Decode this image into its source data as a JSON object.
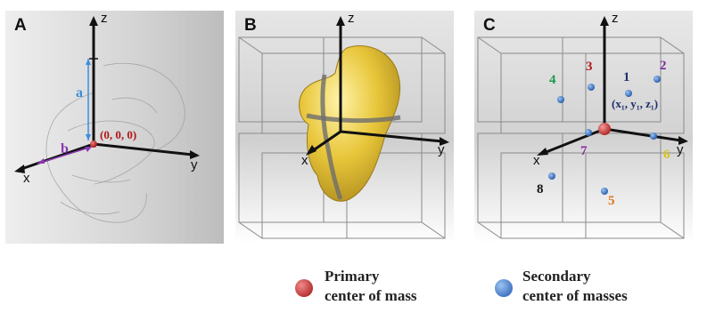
{
  "panels": {
    "a": {
      "label": "A",
      "axes": {
        "z": "z",
        "y": "y",
        "x": "x"
      },
      "dim_a": "a",
      "dim_b": "b",
      "origin": "(0, 0, 0)"
    },
    "b": {
      "label": "B",
      "axes": {
        "z": "z",
        "y": "y",
        "x": "x"
      }
    },
    "c": {
      "label": "C",
      "axes": {
        "z": "z",
        "y": "y",
        "x": "x"
      },
      "numbers": [
        "1",
        "2",
        "3",
        "4",
        "5",
        "6",
        "7",
        "8"
      ],
      "coord": "(x₁, y₁, z₁)"
    }
  },
  "legend": {
    "primary": {
      "line1": "Primary",
      "line2": "center of mass",
      "color": "#c01818"
    },
    "secondary": {
      "line1": "Secondary",
      "line2": "center of masses",
      "color": "#2f6fc8"
    }
  },
  "colors": {
    "n1": "#1f2f6f",
    "n2": "#7a2a9a",
    "n3": "#b01818",
    "n4": "#1f9a4a",
    "n5": "#e07820",
    "n6": "#d6c21a",
    "n7": "#8a2aa0",
    "n8": "#111111"
  }
}
